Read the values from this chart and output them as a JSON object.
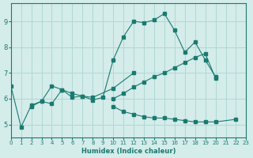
{
  "xlabel": "Humidex (Indice chaleur)",
  "ylabel": "",
  "background_color": "#d4ecea",
  "grid_color": "#b0d8d5",
  "line_color": "#1a7a70",
  "xlim": [
    0,
    23
  ],
  "ylim": [
    4.5,
    9.7
  ],
  "xticks": [
    0,
    1,
    2,
    3,
    4,
    5,
    6,
    7,
    8,
    9,
    10,
    11,
    12,
    13,
    14,
    15,
    16,
    17,
    18,
    19,
    20,
    21,
    22,
    23
  ],
  "yticks": [
    5,
    6,
    7,
    8,
    9
  ],
  "series": [
    {
      "x": [
        0,
        1,
        2,
        3,
        4,
        5,
        6,
        7,
        8,
        9,
        10,
        11,
        12,
        13,
        14,
        15,
        16,
        17,
        18,
        19,
        20
      ],
      "y": [
        6.5,
        4.9,
        5.75,
        5.9,
        6.5,
        6.35,
        6.2,
        6.1,
        5.95,
        6.05,
        7.5,
        8.4,
        9.0,
        8.95,
        9.05,
        9.3,
        8.65,
        7.8,
        8.2,
        7.5,
        6.85
      ]
    },
    {
      "x": [
        2,
        3,
        4,
        5,
        6,
        7,
        8,
        10,
        12
      ],
      "y": [
        5.7,
        5.9,
        5.8,
        6.35,
        6.05,
        6.1,
        6.05,
        6.4,
        7.0
      ]
    },
    {
      "x": [
        10,
        11,
        12,
        13,
        14,
        15,
        16,
        17,
        18,
        19,
        20
      ],
      "y": [
        6.0,
        6.2,
        6.45,
        6.65,
        6.85,
        7.0,
        7.2,
        7.4,
        7.6,
        7.75,
        6.8
      ]
    },
    {
      "x": [
        10,
        11,
        12,
        13,
        14,
        15,
        16,
        17,
        18,
        19,
        20,
        22
      ],
      "y": [
        5.7,
        5.5,
        5.4,
        5.3,
        5.25,
        5.25,
        5.2,
        5.15,
        5.1,
        5.1,
        5.1,
        5.2
      ]
    }
  ]
}
